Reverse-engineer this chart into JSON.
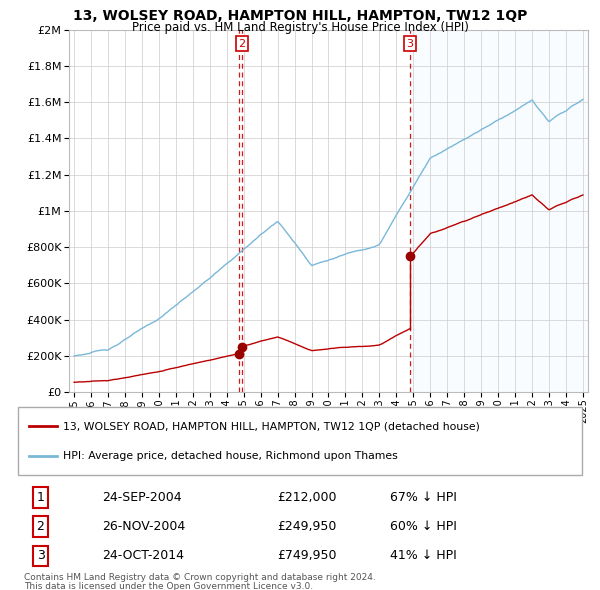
{
  "title": "13, WOLSEY ROAD, HAMPTON HILL, HAMPTON, TW12 1QP",
  "subtitle": "Price paid vs. HM Land Registry's House Price Index (HPI)",
  "legend_line1": "13, WOLSEY ROAD, HAMPTON HILL, HAMPTON, TW12 1QP (detached house)",
  "legend_line2": "HPI: Average price, detached house, Richmond upon Thames",
  "footer1": "Contains HM Land Registry data © Crown copyright and database right 2024.",
  "footer2": "This data is licensed under the Open Government Licence v3.0.",
  "hpi_color": "#7ab8d9",
  "price_color": "#bb0000",
  "vline_color": "#cc0000",
  "dot_color": "#990000",
  "shade_color": "#ddeeff",
  "ylim": [
    0,
    2000000
  ],
  "xlim_left": 1994.7,
  "xlim_right": 2025.3,
  "background_color": "#ffffff",
  "grid_color": "#cccccc",
  "t1_x": 2004.73,
  "t2_x": 2004.9,
  "t3_x": 2014.81,
  "t1_price": 212000,
  "t2_price": 249950,
  "t3_price": 749950,
  "table_data": [
    [
      "1",
      "24-SEP-2004",
      "£212,000",
      "67% ↓ HPI"
    ],
    [
      "2",
      "26-NOV-2004",
      "£249,950",
      "60% ↓ HPI"
    ],
    [
      "3",
      "24-OCT-2014",
      "£749,950",
      "41% ↓ HPI"
    ]
  ]
}
